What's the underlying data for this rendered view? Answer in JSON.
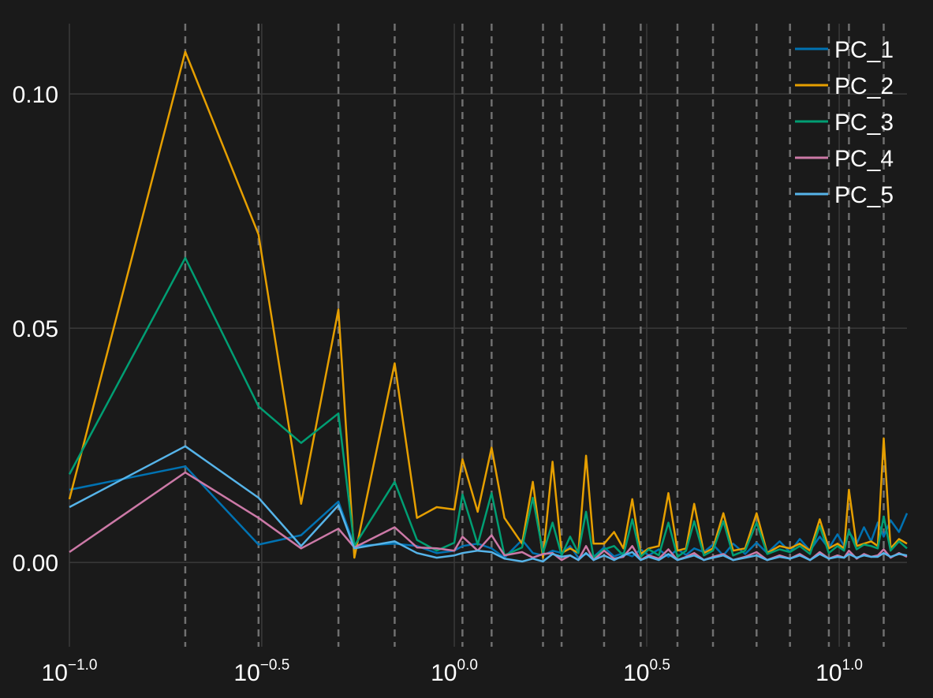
{
  "chart_data": {
    "type": "line",
    "title": "",
    "xlabel": "",
    "ylabel": "",
    "x_scale": "log10",
    "xlim": [
      0.1,
      15.0
    ],
    "ylim": [
      -0.018,
      0.115
    ],
    "grid": true,
    "legend_position": "top-right",
    "background_color": "#1a1a1a",
    "x_ticks": [
      {
        "value": 0.1,
        "base": "10",
        "exp": "−1.0"
      },
      {
        "value": 0.316,
        "base": "10",
        "exp": "−0.5"
      },
      {
        "value": 1.0,
        "base": "10",
        "exp": "0.0"
      },
      {
        "value": 3.162,
        "base": "10",
        "exp": "0.5"
      },
      {
        "value": 10.0,
        "base": "10",
        "exp": "1.0"
      }
    ],
    "y_ticks": [
      {
        "value": 0.0,
        "label": "0.00"
      },
      {
        "value": 0.05,
        "label": "0.05"
      },
      {
        "value": 0.1,
        "label": "0.10"
      }
    ],
    "vlines": [
      0.2,
      0.31,
      0.5,
      0.7,
      1.05,
      1.25,
      1.7,
      1.9,
      2.45,
      3.05,
      3.8,
      4.7,
      6.1,
      7.45,
      9.4,
      10.6,
      13.05
    ],
    "x": [
      0.1,
      0.2,
      0.31,
      0.4,
      0.5,
      0.55,
      0.7,
      0.8,
      0.9,
      1.0,
      1.05,
      1.15,
      1.25,
      1.35,
      1.5,
      1.6,
      1.7,
      1.8,
      1.9,
      2.0,
      2.1,
      2.2,
      2.3,
      2.45,
      2.6,
      2.75,
      2.9,
      3.05,
      3.2,
      3.4,
      3.6,
      3.8,
      4.0,
      4.2,
      4.45,
      4.7,
      5.0,
      5.3,
      5.7,
      6.1,
      6.5,
      7.0,
      7.45,
      7.9,
      8.4,
      8.9,
      9.4,
      9.9,
      10.3,
      10.6,
      11.1,
      11.6,
      12.1,
      12.6,
      13.05,
      13.6,
      14.3,
      15.0
    ],
    "series": [
      {
        "name": "PC_1",
        "color": "#0072b2",
        "values": [
          0.0155,
          0.0205,
          0.0038,
          0.0058,
          0.013,
          0.0035,
          0.004,
          0.0035,
          0.002,
          0.0025,
          0.0035,
          0.004,
          0.003,
          0.001,
          0.0048,
          0.002,
          0.0015,
          0.0025,
          0.002,
          0.0035,
          0.001,
          0.0018,
          0.0012,
          0.0032,
          0.0013,
          0.002,
          0.0013,
          0.0028,
          0.0015,
          0.0028,
          0.0012,
          0.0028,
          0.0016,
          0.003,
          0.0022,
          0.0038,
          0.0015,
          0.004,
          0.0018,
          0.0042,
          0.002,
          0.0045,
          0.0022,
          0.005,
          0.0025,
          0.0055,
          0.003,
          0.006,
          0.0035,
          0.0065,
          0.004,
          0.0075,
          0.0045,
          0.0085,
          0.0055,
          0.009,
          0.0065,
          0.0105
        ]
      },
      {
        "name": "PC_2",
        "color": "#e69f00",
        "values": [
          0.0135,
          0.109,
          0.07,
          0.0125,
          0.054,
          0.001,
          0.0425,
          0.0095,
          0.0118,
          0.0113,
          0.022,
          0.0108,
          0.0245,
          0.0095,
          0.004,
          0.0172,
          0.001,
          0.0215,
          0.002,
          0.003,
          0.002,
          0.0228,
          0.004,
          0.004,
          0.0065,
          0.003,
          0.0135,
          0.0018,
          0.003,
          0.0035,
          0.0148,
          0.0025,
          0.003,
          0.0125,
          0.002,
          0.003,
          0.0105,
          0.0025,
          0.003,
          0.0105,
          0.002,
          0.0035,
          0.003,
          0.004,
          0.0025,
          0.0092,
          0.003,
          0.004,
          0.003,
          0.0155,
          0.0035,
          0.004,
          0.0045,
          0.0035,
          0.0265,
          0.003,
          0.005,
          0.004
        ]
      },
      {
        "name": "PC_3",
        "color": "#009e73",
        "values": [
          0.0188,
          0.065,
          0.0333,
          0.0255,
          0.0318,
          0.0035,
          0.0172,
          0.0048,
          0.0025,
          0.0042,
          0.0145,
          0.0038,
          0.0148,
          0.0015,
          0.0032,
          0.0138,
          0.002,
          0.0085,
          0.0015,
          0.0055,
          0.002,
          0.0108,
          0.001,
          0.0028,
          0.0035,
          0.0015,
          0.0092,
          0.0012,
          0.0028,
          0.0015,
          0.0085,
          0.0012,
          0.0025,
          0.0088,
          0.0015,
          0.0025,
          0.0088,
          0.0015,
          0.0025,
          0.0085,
          0.0018,
          0.0028,
          0.0022,
          0.0035,
          0.0018,
          0.0078,
          0.002,
          0.0035,
          0.0025,
          0.0068,
          0.0028,
          0.0038,
          0.0035,
          0.003,
          0.0098,
          0.0025,
          0.0045,
          0.003
        ]
      },
      {
        "name": "PC_4",
        "color": "#cc79a7",
        "values": [
          0.0022,
          0.0192,
          0.0095,
          0.003,
          0.0072,
          0.0032,
          0.0075,
          0.0032,
          0.003,
          0.0025,
          0.0055,
          0.0025,
          0.0058,
          0.0015,
          0.0022,
          0.001,
          0.0018,
          0.002,
          0.0005,
          0.0015,
          0.0005,
          0.0035,
          0.0005,
          0.0025,
          0.0008,
          0.0012,
          0.0035,
          0.0005,
          0.0015,
          0.0008,
          0.0028,
          0.0005,
          0.0012,
          0.002,
          0.0005,
          0.0012,
          0.0018,
          0.0005,
          0.0012,
          0.0022,
          0.0005,
          0.0015,
          0.0008,
          0.0018,
          0.0005,
          0.0022,
          0.0008,
          0.0015,
          0.001,
          0.0025,
          0.0008,
          0.0018,
          0.0012,
          0.0015,
          0.0028,
          0.001,
          0.002,
          0.0012
        ]
      },
      {
        "name": "PC_5",
        "color": "#56b4e9",
        "values": [
          0.0118,
          0.0248,
          0.0138,
          0.0035,
          0.0122,
          0.003,
          0.0045,
          0.002,
          0.001,
          0.0015,
          0.002,
          0.0025,
          0.0022,
          0.0008,
          0.0002,
          0.0008,
          0.0002,
          0.0018,
          0.0012,
          0.0015,
          0.0005,
          0.002,
          0.0005,
          0.0015,
          0.0005,
          0.0015,
          0.0022,
          0.0005,
          0.0012,
          0.0005,
          0.0018,
          0.0005,
          0.001,
          0.0015,
          0.0005,
          0.001,
          0.0015,
          0.0005,
          0.001,
          0.0015,
          0.0005,
          0.0012,
          0.0008,
          0.0015,
          0.0005,
          0.0018,
          0.0008,
          0.0012,
          0.001,
          0.0018,
          0.001,
          0.0015,
          0.0012,
          0.0012,
          0.002,
          0.0012,
          0.0018,
          0.0015
        ]
      }
    ]
  }
}
